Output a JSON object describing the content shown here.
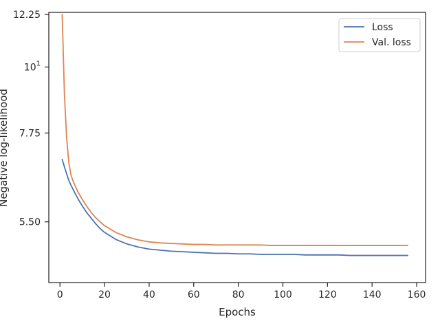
{
  "chart_data": {
    "type": "line",
    "xlabel": "Epochs",
    "ylabel": "Negative log-likelihood",
    "xlim": [
      -5,
      164
    ],
    "ylim": [
      4.35,
      12.35
    ],
    "y_scale": "log",
    "grid": false,
    "legend_position": "top-right",
    "x_ticks": [
      0,
      20,
      40,
      60,
      80,
      100,
      120,
      140,
      160
    ],
    "x_tick_labels": [
      "0",
      "20",
      "40",
      "60",
      "80",
      "100",
      "120",
      "140",
      "160"
    ],
    "y_ticks": [
      {
        "value": 12.25,
        "label": "12.25"
      },
      {
        "value": 10,
        "label": "10",
        "sup": "1"
      },
      {
        "value": 7.75,
        "label": "7.75"
      },
      {
        "value": 5.5,
        "label": "5.50"
      }
    ],
    "series": [
      {
        "name": "Loss",
        "color": "#4c72b0",
        "x": [
          1,
          2,
          3,
          4,
          5,
          6,
          8,
          10,
          12,
          14,
          16,
          18,
          20,
          25,
          30,
          35,
          40,
          45,
          50,
          55,
          60,
          65,
          70,
          75,
          80,
          85,
          90,
          95,
          100,
          105,
          110,
          115,
          120,
          125,
          130,
          135,
          140,
          145,
          150,
          156
        ],
        "y": [
          7.0,
          6.8,
          6.62,
          6.45,
          6.33,
          6.22,
          6.02,
          5.85,
          5.7,
          5.58,
          5.46,
          5.36,
          5.28,
          5.14,
          5.05,
          4.99,
          4.95,
          4.93,
          4.91,
          4.9,
          4.89,
          4.88,
          4.87,
          4.87,
          4.86,
          4.86,
          4.85,
          4.85,
          4.85,
          4.85,
          4.84,
          4.84,
          4.84,
          4.84,
          4.83,
          4.83,
          4.83,
          4.83,
          4.83,
          4.83
        ]
      },
      {
        "name": "Val. loss",
        "color": "#dd8452",
        "x": [
          1,
          2,
          3,
          4,
          5,
          6,
          8,
          10,
          12,
          14,
          16,
          18,
          20,
          25,
          30,
          35,
          40,
          45,
          50,
          55,
          60,
          65,
          70,
          75,
          80,
          85,
          90,
          95,
          100,
          105,
          110,
          115,
          120,
          125,
          130,
          135,
          140,
          145,
          150,
          156
        ],
        "y": [
          12.25,
          9.0,
          7.6,
          6.9,
          6.58,
          6.42,
          6.18,
          6.0,
          5.84,
          5.7,
          5.59,
          5.5,
          5.42,
          5.28,
          5.19,
          5.13,
          5.09,
          5.07,
          5.06,
          5.05,
          5.04,
          5.04,
          5.03,
          5.03,
          5.03,
          5.03,
          5.03,
          5.02,
          5.02,
          5.02,
          5.02,
          5.02,
          5.02,
          5.02,
          5.02,
          5.02,
          5.02,
          5.02,
          5.02,
          5.02
        ]
      }
    ]
  }
}
